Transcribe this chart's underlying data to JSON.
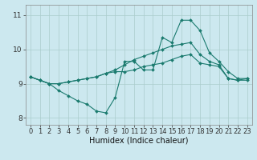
{
  "xlabel": "Humidex (Indice chaleur)",
  "background_color": "#cce8ef",
  "grid_color": "#aacccc",
  "line_color": "#1a7a6e",
  "x_ticks": [
    0,
    1,
    2,
    3,
    4,
    5,
    6,
    7,
    8,
    9,
    10,
    11,
    12,
    13,
    14,
    15,
    16,
    17,
    18,
    19,
    20,
    21,
    22,
    23
  ],
  "ylim": [
    7.8,
    11.3
  ],
  "xlim": [
    -0.5,
    23.5
  ],
  "yticks": [
    8,
    9,
    10,
    11
  ],
  "line1": [
    9.2,
    9.1,
    9.0,
    9.0,
    9.05,
    9.1,
    9.15,
    9.2,
    9.3,
    9.4,
    9.55,
    9.7,
    9.8,
    9.9,
    10.0,
    10.1,
    10.15,
    10.2,
    9.85,
    9.65,
    9.55,
    9.15,
    9.1,
    9.15
  ],
  "line2": [
    9.2,
    9.1,
    9.0,
    9.0,
    9.05,
    9.1,
    9.15,
    9.2,
    9.3,
    9.35,
    9.35,
    9.4,
    9.5,
    9.55,
    9.6,
    9.7,
    9.8,
    9.85,
    9.6,
    9.55,
    9.5,
    9.15,
    9.1,
    9.1
  ],
  "line3": [
    9.2,
    9.1,
    9.0,
    8.8,
    8.65,
    8.5,
    8.4,
    8.2,
    8.15,
    8.6,
    9.65,
    9.65,
    9.4,
    9.4,
    10.35,
    10.2,
    10.85,
    10.85,
    10.55,
    9.9,
    9.65,
    9.35,
    9.15,
    9.15
  ],
  "tick_fontsize": 6,
  "xlabel_fontsize": 7
}
